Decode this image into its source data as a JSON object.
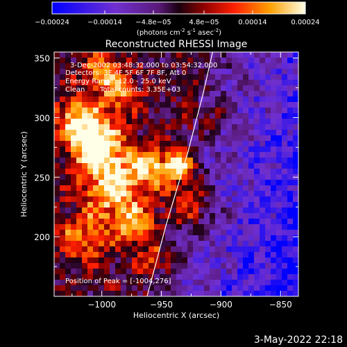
{
  "colorbar": {
    "tick_labels": [
      "-0.00024",
      "-0.00014",
      "-4.8e-05",
      "4.8e-05",
      "0.00014",
      "0.00024"
    ],
    "tick_values": [
      -0.00024,
      -0.00014,
      -4.8e-05,
      4.8e-05,
      0.00014,
      0.00024
    ],
    "range": [
      -0.00024,
      0.00024
    ],
    "units_line1": "(photons cm",
    "units_exp1": "-2",
    "units_s": " s",
    "units_exp2": "-1",
    "units_asec": " asec",
    "units_exp3": "-2",
    "units_close": ")"
  },
  "chart_data": {
    "type": "heatmap",
    "title": "Reconstructed RHESSI Image",
    "xlabel": "Heliocentric X (arcsec)",
    "ylabel": "Heliocentric Y (arcsec)",
    "xlim": [
      -1040,
      -835
    ],
    "ylim": [
      150,
      355
    ],
    "x_ticks": [
      -1000,
      -950,
      -900,
      -850
    ],
    "x_tick_labels": [
      "-1000",
      "-950",
      "-900",
      "-850"
    ],
    "y_ticks": [
      200,
      250,
      300,
      350
    ],
    "y_tick_labels": [
      "200",
      "250",
      "300",
      "350"
    ],
    "colormap": "red-temperature",
    "value_range": [
      -0.00024,
      0.00024
    ],
    "limb": [
      {
        "x": -962,
        "y": 150
      },
      {
        "x": -946,
        "y": 210
      },
      {
        "x": -928,
        "y": 270
      },
      {
        "x": -915,
        "y": 320
      },
      {
        "x": -907,
        "y": 355
      }
    ],
    "peak": {
      "x": -1004,
      "y": 276
    },
    "annotations": [
      "3-Dec-2002 03:48:32.000 to 03:54:32.000",
      "Detectors: 3F 4F 5F 6F 7F 8F, Att 0",
      "Energy Range: 12.0 - 25.0 keV",
      "Clean",
      "Total counts: 3.35E+03"
    ],
    "peak_label": "Position of Peak = [-1004,276]"
  },
  "footer": {
    "date": "3-May-2022 22:18"
  },
  "colors": {
    "background": "#000000",
    "foreground": "#ffffff"
  }
}
